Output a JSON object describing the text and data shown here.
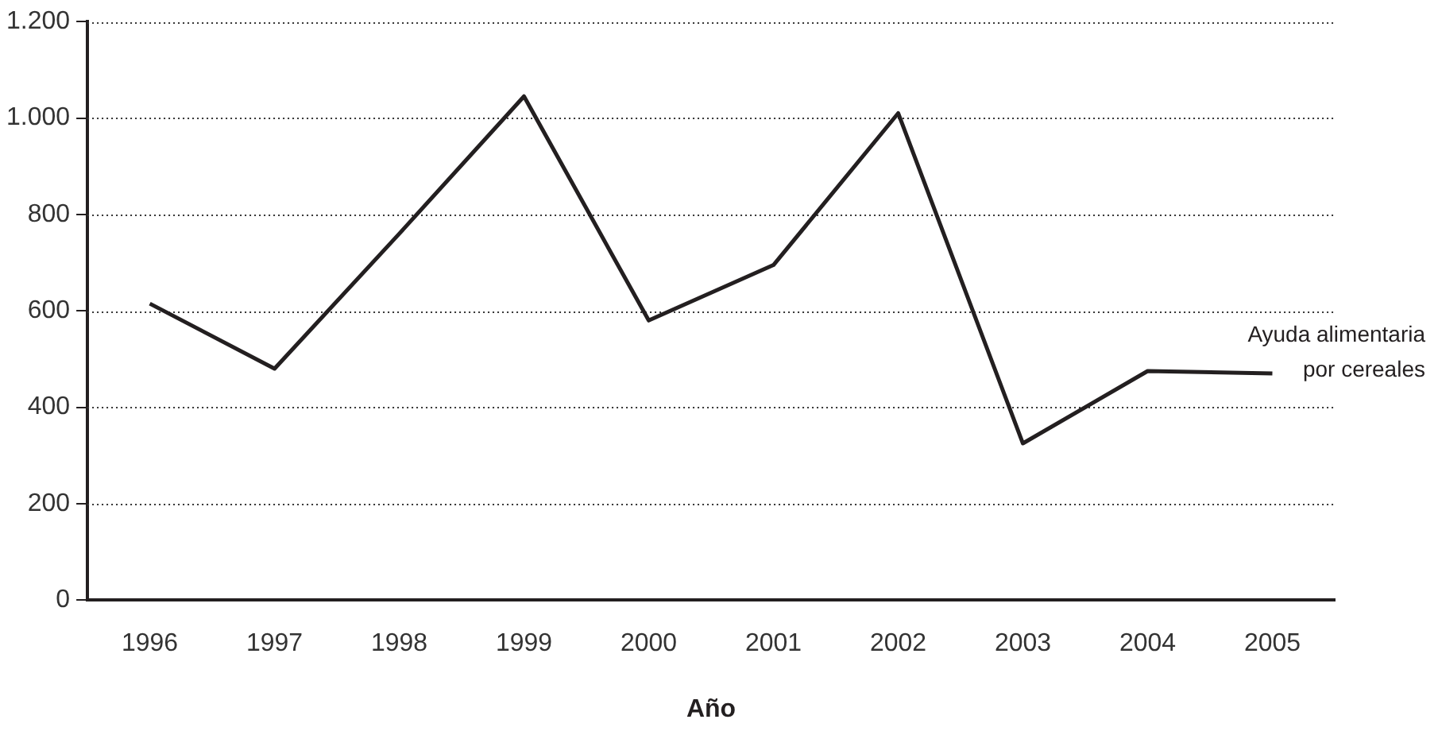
{
  "chart_data": {
    "type": "line",
    "xlabel": "Año",
    "categories": [
      "1996",
      "1997",
      "1998",
      "1999",
      "2000",
      "2001",
      "2002",
      "2003",
      "2004",
      "2005"
    ],
    "series": [
      {
        "name": "Ayuda alimentaria\npor cereales",
        "color": "#231f20",
        "values": [
          615,
          480,
          760,
          1045,
          580,
          695,
          1010,
          325,
          475,
          470
        ]
      }
    ],
    "ylim": [
      0,
      1200
    ],
    "yticks": [
      0,
      200,
      400,
      600,
      800,
      {
        "value": 1000,
        "label": "1.000"
      },
      {
        "value": 1200,
        "label": "1.200"
      }
    ],
    "grid": "y",
    "legend": false,
    "marker": "none",
    "line_style": "solid"
  }
}
